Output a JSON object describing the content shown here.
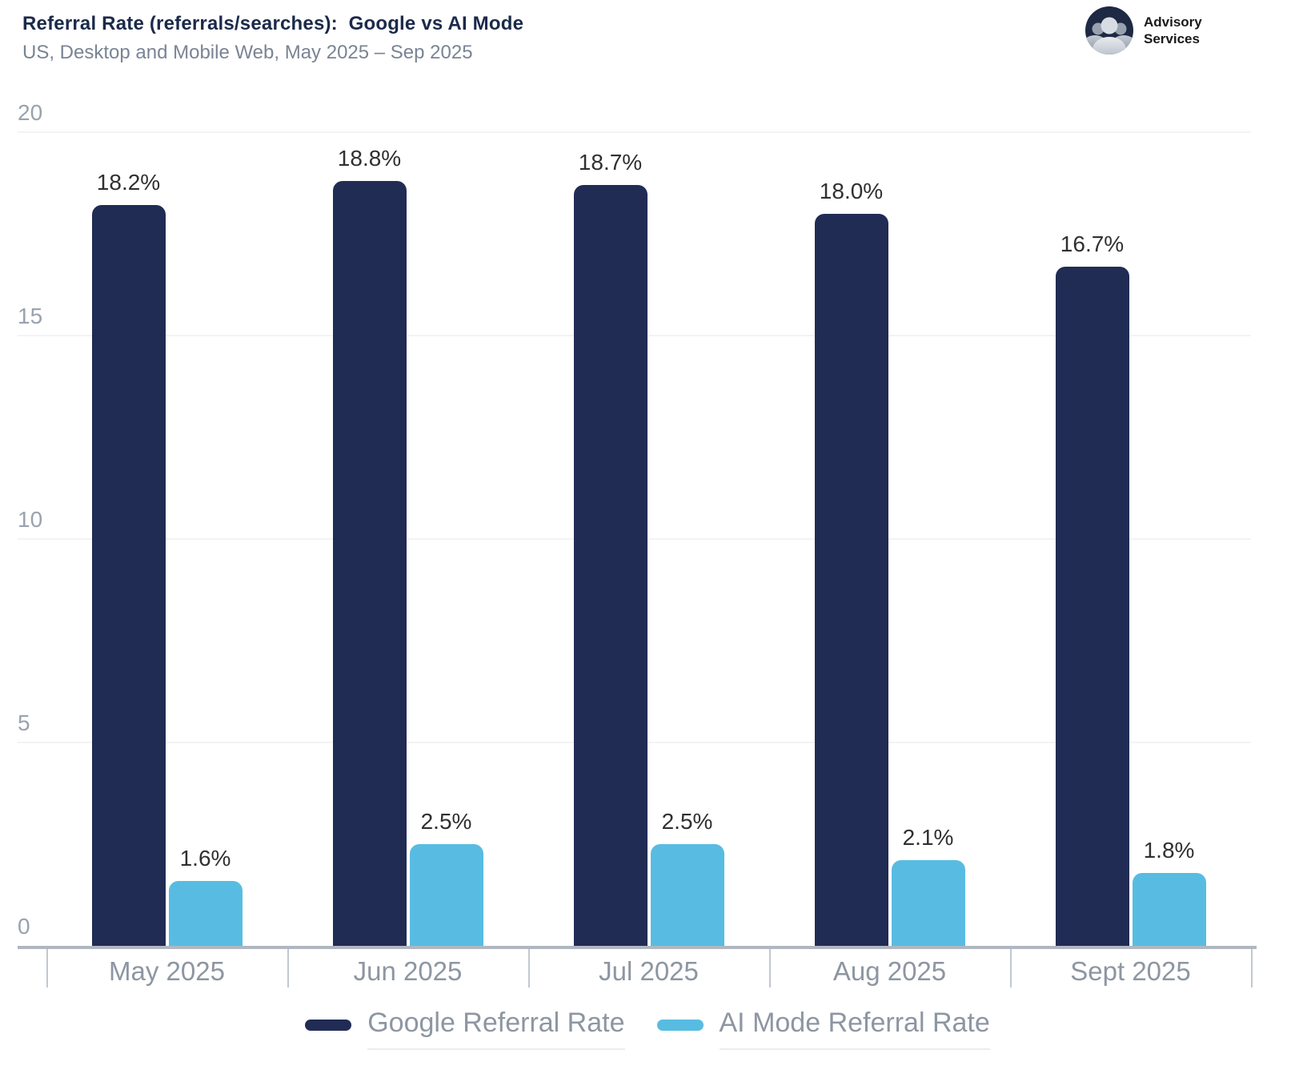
{
  "header": {
    "title": "Referral Rate (referrals/searches):  Google vs AI Mode",
    "subtitle": "US, Desktop and Mobile Web, May 2025 – Sep 2025",
    "logo": {
      "icon": "people-group-icon",
      "line1": "Advisory",
      "line2": "Services"
    }
  },
  "palette": {
    "google_navy": "#212c54",
    "ai_mode_blue": "#58bce2",
    "title_navy": "#1b2a4a",
    "axis_gray": "#b0b7c0",
    "label_gray": "#8d96a2"
  },
  "chart_data": {
    "type": "bar",
    "title": "Referral Rate (referrals/searches):  Google vs AI Mode",
    "subtitle": "US, Desktop and Mobile Web, May 2025 – Sep 2025",
    "categories": [
      "May 2025",
      "Jun 2025",
      "Jul 2025",
      "Aug 2025",
      "Sept 2025"
    ],
    "series": [
      {
        "name": "Google Referral Rate",
        "color": "#212c54",
        "values": [
          18.2,
          18.8,
          18.7,
          18.0,
          16.7
        ],
        "labels": [
          "18.2%",
          "18.8%",
          "18.7%",
          "18.0%",
          "16.7%"
        ]
      },
      {
        "name": "AI Mode Referral Rate",
        "color": "#58bce2",
        "values": [
          1.6,
          2.5,
          2.5,
          2.1,
          1.8
        ],
        "labels": [
          "1.6%",
          "2.5%",
          "2.5%",
          "2.1%",
          "1.8%"
        ]
      }
    ],
    "xlabel": "",
    "ylabel": "",
    "y_ticks": [
      0,
      5,
      10,
      15,
      20
    ],
    "ylim": [
      0,
      20
    ],
    "grid": true,
    "legend_position": "bottom",
    "value_label_suffix": "%"
  }
}
